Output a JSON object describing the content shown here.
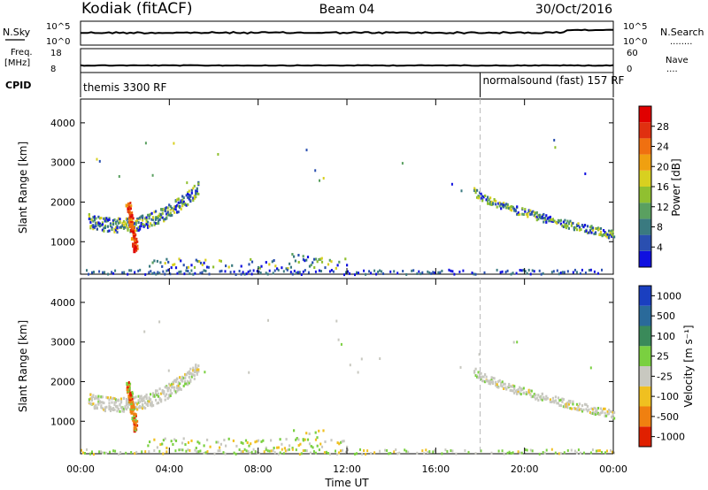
{
  "header": {
    "station": "Kodiak (fitACF)",
    "beam": "Beam 04",
    "date": "30/Oct/2016"
  },
  "strip": {
    "nsky_label": "N.Sky",
    "nsky_ticks": [
      "10^5",
      "10^0"
    ],
    "nsearch_label": "N.Search",
    "nsearch_ticks": [
      "10^5",
      "10^0"
    ],
    "freq_label": "Freq.",
    "freq_unit": "[MHz]",
    "freq_ticks": [
      "18",
      "8"
    ],
    "nave_label": "Nave",
    "nave_ticks": [
      "60",
      "0"
    ],
    "cpid_label": "CPID",
    "cpid_modes": [
      {
        "name": "themis 3300 RF",
        "start_hour": 0
      },
      {
        "name": "normalsound (fast) 157 RF",
        "start_hour": 18
      }
    ]
  },
  "chart_data": [
    {
      "type": "heatmap",
      "quantity": "Power",
      "ylabel": "Slant Range [km]",
      "yticks": [
        "1000",
        "2000",
        "3000",
        "4000"
      ],
      "ylim": [
        180,
        4600
      ],
      "xlim": [
        0,
        24
      ],
      "colorbar": {
        "label": "Power [dB]",
        "ticks": [
          "4",
          "8",
          "12",
          "16",
          "20",
          "24",
          "28"
        ],
        "colors": [
          "#1010e0",
          "#2a4fb0",
          "#3a7a80",
          "#5aa060",
          "#90c030",
          "#d8d020",
          "#f0a010",
          "#f07010",
          "#e03010",
          "#e00000"
        ]
      },
      "segments": [
        {
          "x": [
            0.35,
            5.3
          ],
          "range": [
            1450,
            2350
          ],
          "shape": "arc"
        },
        {
          "x": [
            2.0,
            2.6
          ],
          "range": [
            800,
            2000
          ],
          "shape": "streak"
        },
        {
          "x": [
            3.0,
            12.0
          ],
          "range": [
            350,
            600
          ],
          "shape": "band"
        },
        {
          "x": [
            9.5,
            11.0
          ],
          "range": [
            500,
            800
          ],
          "shape": "band"
        },
        {
          "x": [
            0,
            24
          ],
          "range": [
            200,
            320
          ],
          "shape": "ground"
        },
        {
          "x": [
            17.7,
            24
          ],
          "range": [
            2300,
            1200
          ],
          "shape": "decay"
        }
      ]
    },
    {
      "type": "heatmap",
      "quantity": "Velocity",
      "xlabel": "Time UT",
      "ylabel": "Slant Range [km]",
      "yticks": [
        "1000",
        "2000",
        "3000",
        "4000"
      ],
      "xticks": [
        "00:00",
        "04:00",
        "08:00",
        "12:00",
        "16:00",
        "20:00",
        "00:00"
      ],
      "ylim": [
        180,
        4600
      ],
      "xlim": [
        0,
        24
      ],
      "colorbar": {
        "label": "Velocity [m s⁻¹]",
        "ticks": [
          "1000",
          "500",
          "100",
          "25",
          "-25",
          "-100",
          "-500",
          "-1000"
        ],
        "colors": [
          "#1a3fc0",
          "#2a6a9a",
          "#3a8a5a",
          "#7ad040",
          "#c8c8c0",
          "#f0c020",
          "#f08010",
          "#e02000"
        ]
      },
      "segments": [
        {
          "x": [
            0.35,
            5.3
          ],
          "range": [
            1450,
            2350
          ],
          "shape": "arc"
        },
        {
          "x": [
            2.0,
            2.6
          ],
          "range": [
            800,
            2000
          ],
          "shape": "streak"
        },
        {
          "x": [
            3.0,
            12.0
          ],
          "range": [
            350,
            600
          ],
          "shape": "band"
        },
        {
          "x": [
            9.5,
            11.0
          ],
          "range": [
            500,
            800
          ],
          "shape": "band"
        },
        {
          "x": [
            0,
            24
          ],
          "range": [
            200,
            320
          ],
          "shape": "ground"
        },
        {
          "x": [
            17.7,
            24
          ],
          "range": [
            2300,
            1200
          ],
          "shape": "decay"
        }
      ]
    }
  ],
  "colors": {
    "trace": "#000000",
    "mode_divider": "#bbbbbb"
  }
}
